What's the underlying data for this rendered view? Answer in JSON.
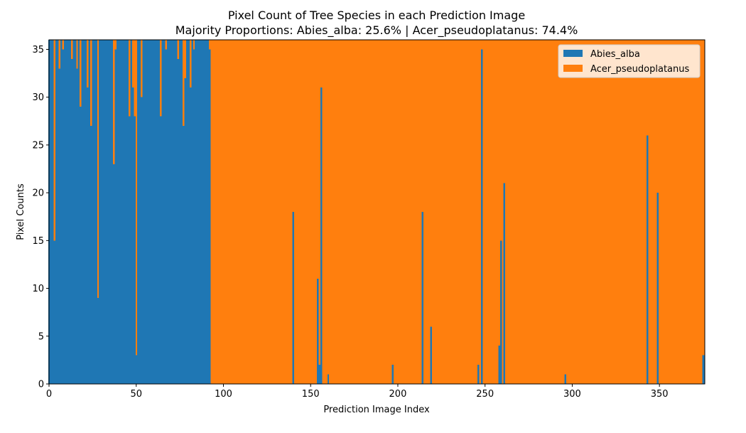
{
  "chart_data": {
    "type": "bar",
    "stacked": true,
    "title": "Pixel Count of Tree Species in each Prediction Image",
    "subtitle": "Majority Proportions: Abies_alba: 25.6% | Acer_pseudoplatanus: 74.4%",
    "xlabel": "Prediction Image Index",
    "ylabel": "Pixel Counts",
    "xlim": [
      0,
      376
    ],
    "ylim": [
      0,
      36
    ],
    "xticks": [
      0,
      50,
      100,
      150,
      200,
      250,
      300,
      350
    ],
    "yticks": [
      0,
      5,
      10,
      15,
      20,
      25,
      30,
      35
    ],
    "x_start": 0,
    "x_end": 375,
    "total_per_image": 36,
    "legend_position": "top-right",
    "series": [
      {
        "name": "Abies_alba",
        "color": "#1f77b4",
        "default_range_0_92": 36,
        "default_range_93_375": 0,
        "exceptions": {
          "3": 15,
          "6": 33,
          "8": 35,
          "13": 34,
          "16": 33,
          "18": 29,
          "22": 31,
          "24": 27,
          "28": 9,
          "37": 23,
          "38": 35,
          "46": 28,
          "48": 31,
          "49": 28,
          "50": 3,
          "53": 30,
          "64": 28,
          "67": 35,
          "74": 34,
          "77": 27,
          "78": 32,
          "81": 31,
          "83": 35,
          "92": 35,
          "140": 18,
          "154": 11,
          "155": 2,
          "156": 31,
          "160": 1,
          "197": 2,
          "214": 18,
          "219": 6,
          "246": 2,
          "248": 35,
          "258": 4,
          "259": 15,
          "261": 21,
          "296": 1,
          "343": 26,
          "349": 20,
          "375": 3
        }
      },
      {
        "name": "Acer_pseudoplatanus",
        "color": "#ff7f0e",
        "note_complement": true
      }
    ]
  }
}
